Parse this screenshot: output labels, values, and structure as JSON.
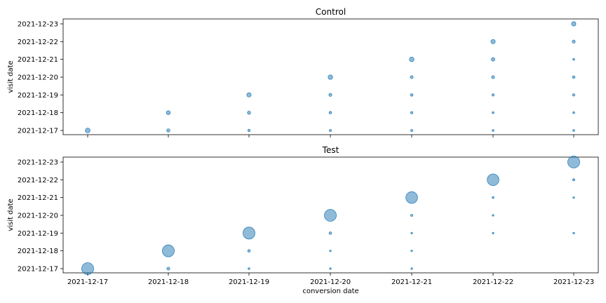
{
  "colors": {
    "marker": "#1f77b4"
  },
  "chart_data": [
    {
      "type": "scatter",
      "title": "Control",
      "xlabel": "",
      "ylabel": "visit date",
      "x_categories": [
        "2021-12-17",
        "2021-12-18",
        "2021-12-19",
        "2021-12-20",
        "2021-12-21",
        "2021-12-22",
        "2021-12-23"
      ],
      "y_categories": [
        "2021-12-17",
        "2021-12-18",
        "2021-12-19",
        "2021-12-20",
        "2021-12-21",
        "2021-12-22",
        "2021-12-23"
      ],
      "show_x_tick_labels": false,
      "marker_alpha": 0.5,
      "points": [
        {
          "x": "2021-12-17",
          "y": "2021-12-17",
          "size": 0.4
        },
        {
          "x": "2021-12-18",
          "y": "2021-12-17",
          "size": 0.27
        },
        {
          "x": "2021-12-18",
          "y": "2021-12-18",
          "size": 0.33
        },
        {
          "x": "2021-12-19",
          "y": "2021-12-17",
          "size": 0.2
        },
        {
          "x": "2021-12-19",
          "y": "2021-12-18",
          "size": 0.27
        },
        {
          "x": "2021-12-19",
          "y": "2021-12-19",
          "size": 0.36
        },
        {
          "x": "2021-12-20",
          "y": "2021-12-17",
          "size": 0.18
        },
        {
          "x": "2021-12-20",
          "y": "2021-12-18",
          "size": 0.22
        },
        {
          "x": "2021-12-20",
          "y": "2021-12-19",
          "size": 0.25
        },
        {
          "x": "2021-12-20",
          "y": "2021-12-20",
          "size": 0.38
        },
        {
          "x": "2021-12-21",
          "y": "2021-12-17",
          "size": 0.18
        },
        {
          "x": "2021-12-21",
          "y": "2021-12-18",
          "size": 0.2
        },
        {
          "x": "2021-12-21",
          "y": "2021-12-19",
          "size": 0.22
        },
        {
          "x": "2021-12-21",
          "y": "2021-12-20",
          "size": 0.25
        },
        {
          "x": "2021-12-21",
          "y": "2021-12-21",
          "size": 0.38
        },
        {
          "x": "2021-12-22",
          "y": "2021-12-17",
          "size": 0.16
        },
        {
          "x": "2021-12-22",
          "y": "2021-12-18",
          "size": 0.16
        },
        {
          "x": "2021-12-22",
          "y": "2021-12-19",
          "size": 0.2
        },
        {
          "x": "2021-12-22",
          "y": "2021-12-20",
          "size": 0.25
        },
        {
          "x": "2021-12-22",
          "y": "2021-12-21",
          "size": 0.29
        },
        {
          "x": "2021-12-22",
          "y": "2021-12-22",
          "size": 0.36
        },
        {
          "x": "2021-12-23",
          "y": "2021-12-17",
          "size": 0.16
        },
        {
          "x": "2021-12-23",
          "y": "2021-12-18",
          "size": 0.16
        },
        {
          "x": "2021-12-23",
          "y": "2021-12-19",
          "size": 0.2
        },
        {
          "x": "2021-12-23",
          "y": "2021-12-20",
          "size": 0.22
        },
        {
          "x": "2021-12-23",
          "y": "2021-12-21",
          "size": 0.16
        },
        {
          "x": "2021-12-23",
          "y": "2021-12-22",
          "size": 0.25
        },
        {
          "x": "2021-12-23",
          "y": "2021-12-23",
          "size": 0.36
        }
      ]
    },
    {
      "type": "scatter",
      "title": "Test",
      "xlabel": "conversion date",
      "ylabel": "visit date",
      "x_categories": [
        "2021-12-17",
        "2021-12-18",
        "2021-12-19",
        "2021-12-20",
        "2021-12-21",
        "2021-12-22",
        "2021-12-23"
      ],
      "y_categories": [
        "2021-12-17",
        "2021-12-18",
        "2021-12-19",
        "2021-12-20",
        "2021-12-21",
        "2021-12-22",
        "2021-12-23"
      ],
      "show_x_tick_labels": true,
      "marker_alpha": 0.5,
      "points": [
        {
          "x": "2021-12-17",
          "y": "2021-12-17",
          "size": 1.0
        },
        {
          "x": "2021-12-18",
          "y": "2021-12-17",
          "size": 0.25
        },
        {
          "x": "2021-12-18",
          "y": "2021-12-18",
          "size": 1.0
        },
        {
          "x": "2021-12-19",
          "y": "2021-12-17",
          "size": 0.16
        },
        {
          "x": "2021-12-19",
          "y": "2021-12-18",
          "size": 0.22
        },
        {
          "x": "2021-12-19",
          "y": "2021-12-19",
          "size": 1.0
        },
        {
          "x": "2021-12-20",
          "y": "2021-12-17",
          "size": 0.09
        },
        {
          "x": "2021-12-20",
          "y": "2021-12-18",
          "size": 0.13
        },
        {
          "x": "2021-12-20",
          "y": "2021-12-19",
          "size": 0.22
        },
        {
          "x": "2021-12-20",
          "y": "2021-12-20",
          "size": 1.0
        },
        {
          "x": "2021-12-21",
          "y": "2021-12-17",
          "size": 0.07
        },
        {
          "x": "2021-12-21",
          "y": "2021-12-18",
          "size": 0.07
        },
        {
          "x": "2021-12-21",
          "y": "2021-12-19",
          "size": 0.11
        },
        {
          "x": "2021-12-21",
          "y": "2021-12-20",
          "size": 0.18
        },
        {
          "x": "2021-12-21",
          "y": "2021-12-21",
          "size": 0.98
        },
        {
          "x": "2021-12-22",
          "y": "2021-12-19",
          "size": 0.07
        },
        {
          "x": "2021-12-22",
          "y": "2021-12-20",
          "size": 0.13
        },
        {
          "x": "2021-12-22",
          "y": "2021-12-21",
          "size": 0.16
        },
        {
          "x": "2021-12-22",
          "y": "2021-12-22",
          "size": 0.98
        },
        {
          "x": "2021-12-23",
          "y": "2021-12-19",
          "size": 0.07
        },
        {
          "x": "2021-12-23",
          "y": "2021-12-21",
          "size": 0.11
        },
        {
          "x": "2021-12-23",
          "y": "2021-12-22",
          "size": 0.18
        },
        {
          "x": "2021-12-23",
          "y": "2021-12-23",
          "size": 1.0
        }
      ]
    }
  ]
}
